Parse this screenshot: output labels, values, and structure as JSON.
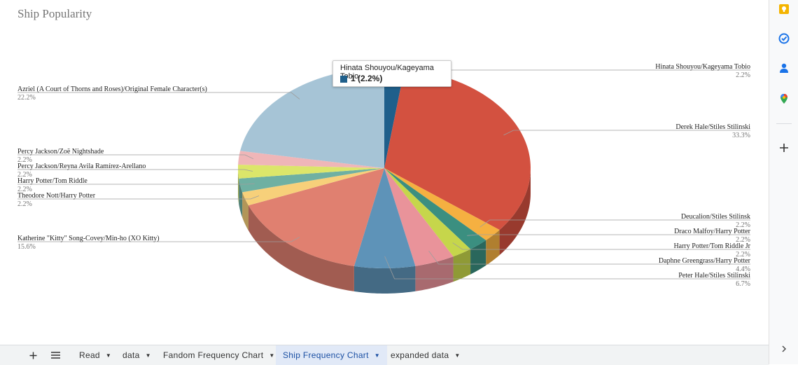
{
  "chart_data": {
    "type": "pie",
    "title": "Ship Popularity",
    "three_d": true,
    "legend": "labeled",
    "slices": [
      {
        "label": "Hinata Shouyou/Kageyama Tobio",
        "value": 2.2,
        "pct": "2.2%",
        "color": "#1f5f8b"
      },
      {
        "label": "Derek Hale/Stiles Stilinski",
        "value": 33.3,
        "pct": "33.3%",
        "color": "#d35140"
      },
      {
        "label": "Deucalion/Stiles Stilinsk",
        "value": 2.2,
        "pct": "2.2%",
        "color": "#f5b041"
      },
      {
        "label": "Draco Malfoy/Harry Potter",
        "value": 2.2,
        "pct": "2.2%",
        "color": "#3b8f80"
      },
      {
        "label": "Harry Potter/Tom Riddle Jr",
        "value": 2.2,
        "pct": "2.2%",
        "color": "#c6d64b"
      },
      {
        "label": "Daphne Greengrass/Harry Potter",
        "value": 4.4,
        "pct": "4.4%",
        "color": "#e9939a"
      },
      {
        "label": "Peter Hale/Stiles Stilinski",
        "value": 6.7,
        "pct": "6.7%",
        "color": "#5e93b8"
      },
      {
        "label": "Katherine \"Kitty\" Song-Covey/Min-ho (XO Kitty)",
        "value": 15.6,
        "pct": "15.6%",
        "color": "#e08070"
      },
      {
        "label": "Theodore Nott/Harry Potter",
        "value": 2.2,
        "pct": "2.2%",
        "color": "#f7d07a"
      },
      {
        "label": "Harry Potter/Tom Riddle",
        "value": 2.2,
        "pct": "2.2%",
        "color": "#6fb0a2"
      },
      {
        "label": "Percy Jackson/Reyna Avila Ramírez-Arellano",
        "value": 2.2,
        "pct": "2.2%",
        "color": "#dce66a"
      },
      {
        "label": "Percy Jackson/Zoë Nightshade",
        "value": 2.2,
        "pct": "2.2%",
        "color": "#efb6b8"
      },
      {
        "label": "Azriel (A Court of Thorns and Roses)/Original Female Character(s)",
        "value": 22.2,
        "pct": "22.2%",
        "color": "#a6c4d6"
      }
    ]
  },
  "tooltip": {
    "title": "Hinata Shouyou/Kageyama Tobio",
    "value": "1 (2.2%)",
    "color": "#1f5f8b"
  },
  "sheet_tabs": [
    {
      "label": "Read",
      "active": false
    },
    {
      "label": "data",
      "active": false
    },
    {
      "label": "Fandom Frequency Chart",
      "active": false
    },
    {
      "label": "Ship Frequency Chart",
      "active": true
    },
    {
      "label": "expanded data",
      "active": false
    }
  ],
  "toolbar": {
    "add_icon": "plus-icon",
    "menu_icon": "menu-icon",
    "caret_icon": "caret-down-icon"
  },
  "side_panel": {
    "icons": [
      "keep-icon",
      "tasks-icon",
      "contacts-icon",
      "maps-icon",
      "add-icon",
      "expand-icon"
    ]
  }
}
